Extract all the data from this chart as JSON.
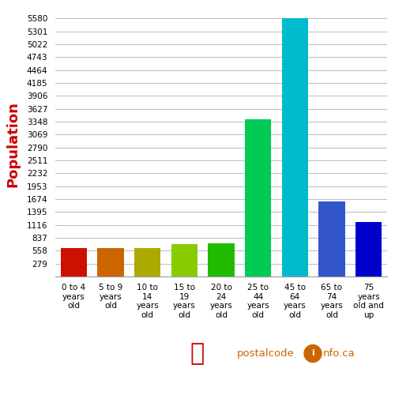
{
  "categories": [
    "0 to 4\nyears\nold",
    "5 to 9\nyears\nold",
    "10 to\n14\nyears\nold",
    "15 to\n19\nyears\nold",
    "20 to\n24\nyears\nold",
    "25 to\n44\nyears\nold",
    "45 to\n64\nyears\nold",
    "65 to\n74\nyears\nold",
    "75\nyears\nold and\nup"
  ],
  "values": [
    620,
    610,
    620,
    700,
    715,
    3390,
    5580,
    1620,
    1175
  ],
  "bar_colors": [
    "#cc1100",
    "#cc6600",
    "#aaaa00",
    "#88cc00",
    "#22bb00",
    "#00cc55",
    "#00bbcc",
    "#3355cc",
    "#0000cc"
  ],
  "yticks": [
    279,
    558,
    837,
    1116,
    1395,
    1674,
    1953,
    2232,
    2511,
    2790,
    3069,
    3348,
    3627,
    3906,
    4185,
    4464,
    4743,
    5022,
    5301,
    5580
  ],
  "ylabel": "Population",
  "ylabel_color": "#cc0000",
  "ylabel_fontsize": 13,
  "background_color": "#ffffff",
  "grid_color": "#bbbbbb",
  "ylim": [
    0,
    5720
  ],
  "bar_width": 0.72,
  "tick_fontsize": 7.5,
  "xlabel_fontsize": 7.5
}
